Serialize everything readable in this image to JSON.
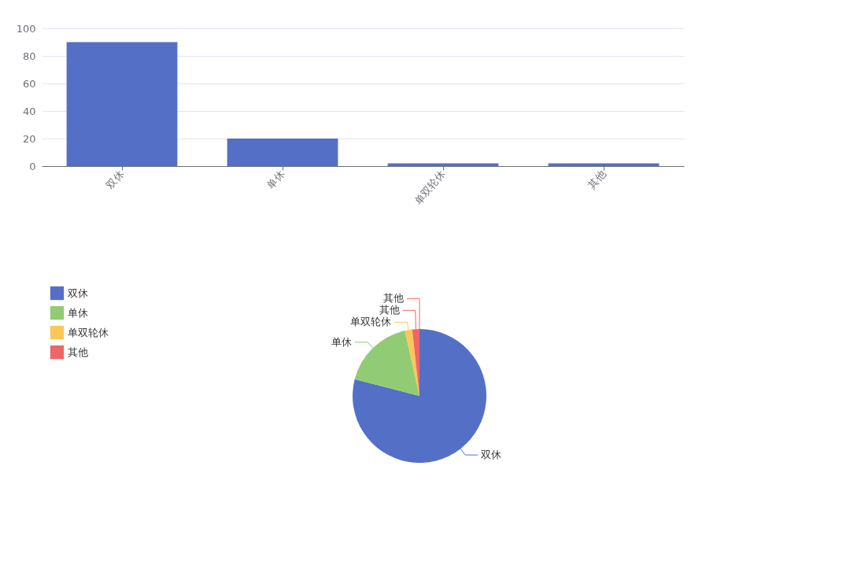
{
  "chart_data": [
    {
      "type": "bar",
      "categories": [
        "双休",
        "单休",
        "单双轮休",
        "其他"
      ],
      "values": [
        90,
        20,
        2,
        2
      ],
      "color": "#5470c6",
      "ylim": [
        0,
        100
      ],
      "yticks": [
        0,
        20,
        40,
        60,
        80,
        100
      ],
      "grid": "y"
    },
    {
      "type": "pie",
      "categories": [
        "双休",
        "单休",
        "单双轮休",
        "其他",
        "其他"
      ],
      "values": [
        79,
        17.5,
        1.75,
        1.75,
        0
      ],
      "colors": [
        "#5470c6",
        "#91cc75",
        "#fac858",
        "#ee6666",
        "#ee6666"
      ],
      "legend": "top left"
    }
  ]
}
